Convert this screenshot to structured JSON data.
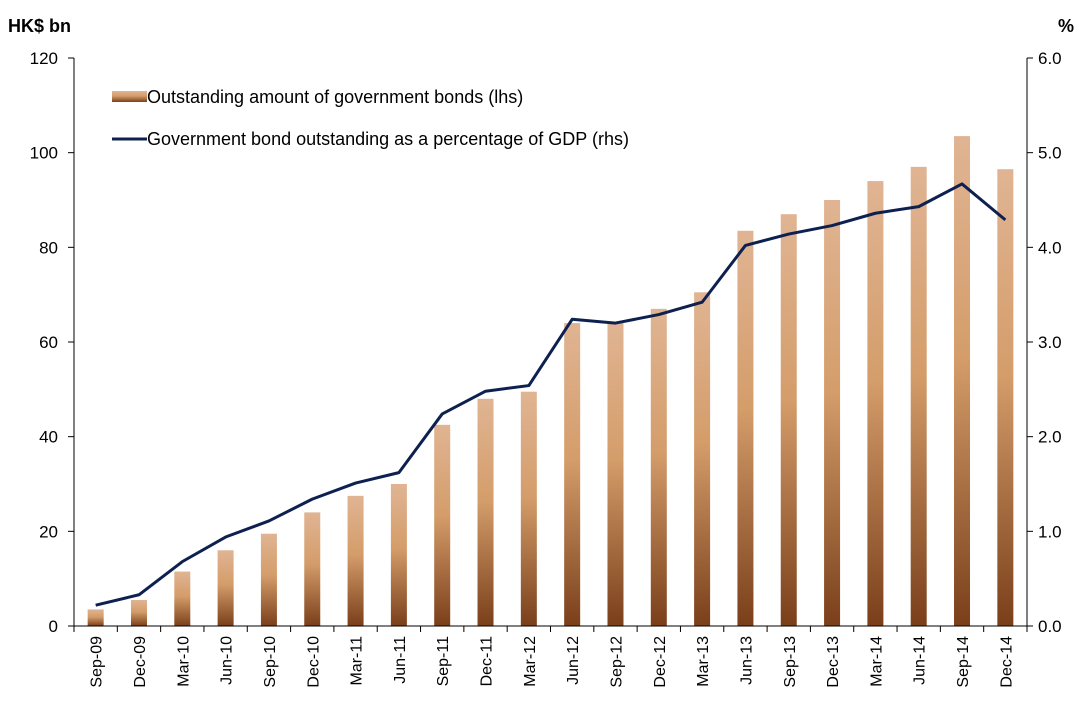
{
  "chart_data": {
    "type": "bar",
    "y_left_label": "HK$ bn",
    "y_right_label": "%",
    "ylim_left": [
      0,
      120
    ],
    "ylim_right": [
      0,
      6
    ],
    "y_left_ticks": [
      "0",
      "20",
      "40",
      "60",
      "80",
      "100",
      "120"
    ],
    "y_right_ticks": [
      "0.0",
      "1.0",
      "2.0",
      "3.0",
      "4.0",
      "5.0",
      "6.0"
    ],
    "grid": false,
    "legend_position": "top-left",
    "categories": [
      "Sep-09",
      "Dec-09",
      "Mar-10",
      "Jun-10",
      "Sep-10",
      "Dec-10",
      "Mar-11",
      "Jun-11",
      "Sep-11",
      "Dec-11",
      "Mar-12",
      "Jun-12",
      "Sep-12",
      "Dec-12",
      "Mar-13",
      "Jun-13",
      "Sep-13",
      "Dec-13",
      "Mar-14",
      "Jun-14",
      "Sep-14",
      "Dec-14"
    ],
    "series": [
      {
        "name": "Outstanding amount of government bonds (lhs)",
        "type": "bar",
        "axis": "left",
        "values": [
          3.5,
          5.5,
          11.5,
          16,
          19.5,
          24,
          27.5,
          30,
          42.5,
          48,
          49.5,
          64,
          64,
          67,
          70.5,
          83.5,
          87,
          90,
          94,
          97,
          103.5,
          96.5
        ]
      },
      {
        "name": "Government bond outstanding as a percentage of GDP (rhs)",
        "type": "line",
        "axis": "right",
        "values": [
          0.22,
          0.33,
          0.68,
          0.94,
          1.11,
          1.34,
          1.51,
          1.62,
          2.24,
          2.48,
          2.54,
          3.24,
          3.2,
          3.29,
          3.42,
          4.02,
          4.14,
          4.23,
          4.36,
          4.43,
          4.67,
          4.29
        ]
      }
    ],
    "colors": {
      "bar_top": "#e0b493",
      "bar_mid": "#d49d6a",
      "bar_bottom": "#7a3f1a",
      "line": "#0d2050",
      "axis": "#000000"
    }
  }
}
